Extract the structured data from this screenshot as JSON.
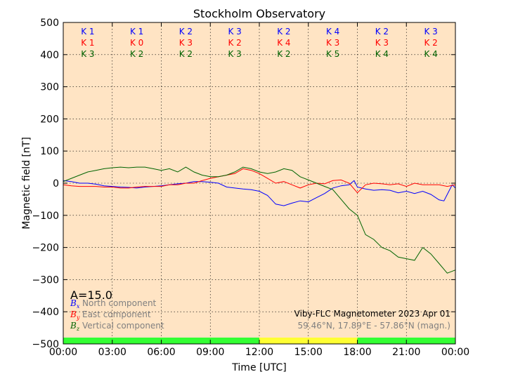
{
  "chart_data": {
    "type": "line",
    "title": "Stockholm Observatory",
    "xlabel": "Time [UTC]",
    "ylabel": "Magnetic field [nT]",
    "ylim": [
      -500,
      500
    ],
    "xlim": [
      0,
      24
    ],
    "yticks": [
      "500",
      "400",
      "300",
      "200",
      "100",
      "0",
      "−100",
      "−200",
      "−300",
      "−400",
      "−500"
    ],
    "xticks": [
      "00:00",
      "03:00",
      "06:00",
      "09:00",
      "12:00",
      "15:00",
      "18:00",
      "21:00",
      "00:00"
    ],
    "grid": true,
    "background_color": "#FFE4C4",
    "activity_index": "A=15.0",
    "instrument": "Viby-FLC Magnetometer 2023 Apr 01",
    "location": "59.46°N, 17.89°E - 57.86°N (magn.)",
    "k_indices": {
      "north": [
        "K 1",
        "K 1",
        "K 2",
        "K 3",
        "K 2",
        "K 4",
        "K 2",
        "K 3"
      ],
      "east": [
        "K 1",
        "K 0",
        "K 3",
        "K 2",
        "K 4",
        "K 3",
        "K 3",
        "K 2"
      ],
      "vertical": [
        "K 3",
        "K 2",
        "K 2",
        "K 3",
        "K 2",
        "K 5",
        "K 4",
        "K 4"
      ]
    },
    "status_bar": [
      {
        "from": 0,
        "to": 12,
        "color": "#33FF33"
      },
      {
        "from": 12,
        "to": 18,
        "color": "#FFFF33"
      },
      {
        "from": 18,
        "to": 24,
        "color": "#33FF33"
      }
    ],
    "series": [
      {
        "name": "North component",
        "symbol": "B",
        "sub": "x",
        "color": "#0000FF",
        "x": [
          0,
          0.5,
          1,
          1.5,
          2,
          2.5,
          3,
          3.5,
          4,
          4.5,
          5,
          5.5,
          6,
          6.5,
          7,
          7.5,
          8,
          8.5,
          9,
          9.5,
          10,
          10.5,
          11,
          11.5,
          12,
          12.5,
          13,
          13.5,
          14,
          14.5,
          15,
          15.5,
          16,
          16.5,
          17,
          17.5,
          17.8,
          18,
          18.5,
          19,
          19.5,
          20,
          20.5,
          21,
          21.5,
          22,
          22.5,
          23,
          23.3,
          23.6,
          23.8,
          24
        ],
        "values": [
          8,
          5,
          0,
          0,
          -3,
          -8,
          -10,
          -12,
          -13,
          -15,
          -12,
          -10,
          -8,
          -5,
          -2,
          0,
          5,
          5,
          3,
          0,
          -12,
          -15,
          -18,
          -20,
          -25,
          -38,
          -65,
          -70,
          -62,
          -55,
          -58,
          -45,
          -32,
          -15,
          -8,
          -5,
          8,
          -12,
          -18,
          -22,
          -20,
          -22,
          -30,
          -25,
          -32,
          -25,
          -35,
          -52,
          -55,
          -25,
          -5,
          -15
        ]
      },
      {
        "name": "East component",
        "symbol": "B",
        "sub": "y",
        "color": "#FF0000",
        "x": [
          0,
          0.5,
          1,
          1.5,
          2,
          2.5,
          3,
          3.5,
          4,
          4.5,
          5,
          5.5,
          6,
          6.5,
          7,
          7.5,
          8,
          8.5,
          9,
          9.5,
          10,
          10.5,
          11,
          11.5,
          12,
          12.5,
          13,
          13.5,
          14,
          14.5,
          15,
          15.5,
          16,
          16.5,
          17,
          17.5,
          18,
          18.5,
          19,
          19.5,
          20,
          20.5,
          21,
          21.5,
          22,
          22.5,
          23,
          23.5,
          24
        ],
        "values": [
          -5,
          -8,
          -10,
          -10,
          -10,
          -12,
          -12,
          -15,
          -15,
          -12,
          -10,
          -10,
          -10,
          -5,
          -5,
          0,
          0,
          8,
          15,
          20,
          25,
          30,
          45,
          40,
          30,
          15,
          0,
          5,
          -5,
          -15,
          -5,
          0,
          -2,
          8,
          10,
          0,
          -30,
          -5,
          0,
          -2,
          -5,
          -2,
          -10,
          0,
          -5,
          -5,
          -5,
          -10,
          -5
        ]
      },
      {
        "name": "Vertical component",
        "symbol": "B",
        "sub": "z",
        "color": "#006400",
        "x": [
          0,
          0.5,
          1,
          1.5,
          2,
          2.5,
          3,
          3.5,
          4,
          4.5,
          5,
          5.5,
          6,
          6.5,
          7,
          7.5,
          8,
          8.5,
          9,
          9.5,
          10,
          10.5,
          11,
          11.5,
          12,
          12.5,
          13,
          13.5,
          14,
          14.5,
          15,
          15.5,
          16,
          16.5,
          17,
          17.5,
          18,
          18.5,
          19,
          19.5,
          20,
          20.5,
          21,
          21.5,
          22,
          22.5,
          23,
          23.5,
          24
        ],
        "values": [
          5,
          15,
          25,
          35,
          40,
          45,
          48,
          50,
          48,
          50,
          50,
          45,
          40,
          45,
          35,
          50,
          35,
          25,
          20,
          20,
          25,
          35,
          50,
          45,
          35,
          30,
          35,
          45,
          40,
          20,
          10,
          0,
          -10,
          -20,
          -50,
          -80,
          -100,
          -160,
          -175,
          -200,
          -210,
          -230,
          -235,
          -240,
          -200,
          -220,
          -250,
          -280,
          -270
        ]
      }
    ]
  }
}
